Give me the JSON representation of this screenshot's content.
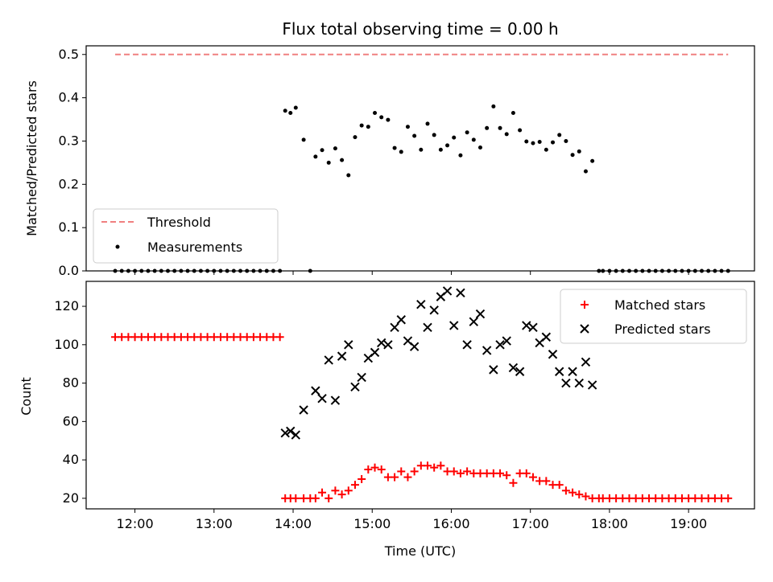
{
  "chart_data": [
    {
      "type": "scatter",
      "title": "Flux total observing time = 0.00 h",
      "xlabel": "",
      "ylabel": "Matched/Predicted stars",
      "xlim": [
        "11:23",
        "19:50"
      ],
      "ylim": [
        0,
        0.52
      ],
      "yticks": [
        0.0,
        0.1,
        0.2,
        0.3,
        0.4,
        0.5
      ],
      "yticklabels": [
        "0.0",
        "0.1",
        "0.2",
        "0.3",
        "0.4",
        "0.5"
      ],
      "grid": false,
      "legend": {
        "position": "lower-left",
        "entries": [
          {
            "label": "Threshold",
            "marker": "dashed-line",
            "color": "#f08080"
          },
          {
            "label": "Measurements",
            "marker": "dot",
            "color": "#000000"
          }
        ]
      },
      "series": [
        {
          "name": "Threshold",
          "style": "dashed-line",
          "color": "#f08080",
          "x": [
            "11:45",
            "19:30"
          ],
          "y": [
            0.5,
            0.5
          ]
        },
        {
          "name": "Measurements",
          "style": "dot",
          "color": "#000000",
          "x": [
            "11:45",
            "11:50",
            "11:55",
            "12:00",
            "12:05",
            "12:10",
            "12:15",
            "12:20",
            "12:25",
            "12:30",
            "12:35",
            "12:40",
            "12:45",
            "12:50",
            "12:55",
            "13:00",
            "13:05",
            "13:10",
            "13:15",
            "13:20",
            "13:25",
            "13:30",
            "13:35",
            "13:40",
            "13:45",
            "13:50",
            "13:54",
            "13:58",
            "14:02",
            "14:08",
            "14:13",
            "14:17",
            "14:22",
            "14:27",
            "14:32",
            "14:37",
            "14:42",
            "14:47",
            "14:52",
            "14:57",
            "15:02",
            "15:07",
            "15:12",
            "15:17",
            "15:22",
            "15:27",
            "15:32",
            "15:37",
            "15:42",
            "15:47",
            "15:52",
            "15:57",
            "16:02",
            "16:07",
            "16:12",
            "16:17",
            "16:22",
            "16:27",
            "16:32",
            "16:37",
            "16:42",
            "16:47",
            "16:52",
            "16:57",
            "17:02",
            "17:07",
            "17:12",
            "17:17",
            "17:22",
            "17:27",
            "17:32",
            "17:37",
            "17:42",
            "17:47",
            "17:52",
            "17:55",
            "18:00",
            "18:05",
            "18:10",
            "18:15",
            "18:20",
            "18:25",
            "18:30",
            "18:35",
            "18:40",
            "18:45",
            "18:50",
            "18:55",
            "19:00",
            "19:05",
            "19:10",
            "19:15",
            "19:20",
            "19:25",
            "19:30"
          ],
          "y": [
            0,
            0,
            0,
            0,
            0,
            0,
            0,
            0,
            0,
            0,
            0,
            0,
            0,
            0,
            0,
            0,
            0,
            0,
            0,
            0,
            0,
            0,
            0,
            0,
            0,
            0,
            0.37,
            0.365,
            0.377,
            0.303,
            0.0,
            0.264,
            0.279,
            0.25,
            0.283,
            0.256,
            0.221,
            0.309,
            0.336,
            0.333,
            0.365,
            0.355,
            0.349,
            0.284,
            0.275,
            0.333,
            0.312,
            0.28,
            0.34,
            0.314,
            0.28,
            0.29,
            0.308,
            0.267,
            0.32,
            0.303,
            0.285,
            0.33,
            0.38,
            0.33,
            0.316,
            0.365,
            0.325,
            0.299,
            0.295,
            0.298,
            0.28,
            0.297,
            0.314,
            0.3,
            0.268,
            0.276,
            0.23,
            0.254,
            0,
            0,
            0,
            0,
            0,
            0,
            0,
            0,
            0,
            0,
            0,
            0,
            0,
            0,
            0,
            0,
            0,
            0,
            0,
            0,
            0
          ]
        }
      ]
    },
    {
      "type": "scatter",
      "title": "",
      "xlabel": "Time (UTC)",
      "ylabel": "Count",
      "xlim": [
        "11:23",
        "19:50"
      ],
      "xticks": [
        "12:00",
        "13:00",
        "14:00",
        "15:00",
        "16:00",
        "17:00",
        "18:00",
        "19:00"
      ],
      "ylim": [
        14.5,
        133
      ],
      "yticks": [
        20,
        40,
        60,
        80,
        100,
        120
      ],
      "grid": false,
      "legend": {
        "position": "upper-right",
        "entries": [
          {
            "label": "Matched stars",
            "marker": "plus",
            "color": "#ff0000"
          },
          {
            "label": "Predicted stars",
            "marker": "x",
            "color": "#000000"
          }
        ]
      },
      "series": [
        {
          "name": "Matched stars",
          "style": "plus",
          "color": "#ff0000",
          "x": [
            "11:45",
            "11:50",
            "11:55",
            "12:00",
            "12:05",
            "12:10",
            "12:15",
            "12:20",
            "12:25",
            "12:30",
            "12:35",
            "12:40",
            "12:45",
            "12:50",
            "12:55",
            "13:00",
            "13:05",
            "13:10",
            "13:15",
            "13:20",
            "13:25",
            "13:30",
            "13:35",
            "13:40",
            "13:45",
            "13:50",
            "13:54",
            "13:58",
            "14:02",
            "14:08",
            "14:13",
            "14:17",
            "14:22",
            "14:27",
            "14:32",
            "14:37",
            "14:42",
            "14:47",
            "14:52",
            "14:57",
            "15:02",
            "15:07",
            "15:12",
            "15:17",
            "15:22",
            "15:27",
            "15:32",
            "15:37",
            "15:42",
            "15:47",
            "15:52",
            "15:57",
            "16:02",
            "16:07",
            "16:12",
            "16:17",
            "16:22",
            "16:27",
            "16:32",
            "16:37",
            "16:42",
            "16:47",
            "16:52",
            "16:57",
            "17:02",
            "17:07",
            "17:12",
            "17:17",
            "17:22",
            "17:27",
            "17:32",
            "17:37",
            "17:42",
            "17:47",
            "17:52",
            "17:55",
            "18:00",
            "18:05",
            "18:10",
            "18:15",
            "18:20",
            "18:25",
            "18:30",
            "18:35",
            "18:40",
            "18:45",
            "18:50",
            "18:55",
            "19:00",
            "19:05",
            "19:10",
            "19:15",
            "19:20",
            "19:25",
            "19:30"
          ],
          "y": [
            104,
            104,
            104,
            104,
            104,
            104,
            104,
            104,
            104,
            104,
            104,
            104,
            104,
            104,
            104,
            104,
            104,
            104,
            104,
            104,
            104,
            104,
            104,
            104,
            104,
            104,
            20,
            20,
            20,
            20,
            20,
            20,
            23,
            20,
            24,
            22,
            24,
            27,
            30,
            35,
            36,
            35,
            31,
            31,
            34,
            31,
            34,
            37,
            37,
            36,
            37,
            34,
            34,
            33,
            34,
            33,
            33,
            33,
            33,
            33,
            32,
            28,
            33,
            33,
            31,
            29,
            29,
            27,
            27,
            24,
            23,
            22,
            21,
            20,
            20,
            20,
            20,
            20,
            20,
            20,
            20,
            20,
            20,
            20,
            20,
            20,
            20,
            20,
            20,
            20,
            20,
            20,
            20,
            20,
            20
          ]
        },
        {
          "name": "Predicted stars",
          "style": "x",
          "color": "#000000",
          "x": [
            "13:54",
            "13:58",
            "14:02",
            "14:08",
            "14:17",
            "14:22",
            "14:27",
            "14:32",
            "14:37",
            "14:42",
            "14:47",
            "14:52",
            "14:57",
            "15:02",
            "15:07",
            "15:12",
            "15:17",
            "15:22",
            "15:27",
            "15:32",
            "15:37",
            "15:42",
            "15:47",
            "15:52",
            "15:57",
            "16:02",
            "16:07",
            "16:12",
            "16:17",
            "16:22",
            "16:27",
            "16:32",
            "16:37",
            "16:42",
            "16:47",
            "16:52",
            "16:57",
            "17:02",
            "17:07",
            "17:12",
            "17:17",
            "17:22",
            "17:27",
            "17:32",
            "17:37",
            "17:42",
            "17:47"
          ],
          "y": [
            54,
            55,
            53,
            66,
            76,
            72,
            92,
            71,
            94,
            100,
            78,
            83,
            93,
            96,
            101,
            100,
            109,
            113,
            102,
            99,
            121,
            109,
            118,
            125,
            128,
            110,
            127,
            100,
            112,
            116,
            97,
            87,
            100,
            102,
            88,
            86,
            110,
            109,
            101,
            104,
            95,
            86,
            80,
            86,
            80,
            91,
            79
          ]
        }
      ]
    }
  ]
}
